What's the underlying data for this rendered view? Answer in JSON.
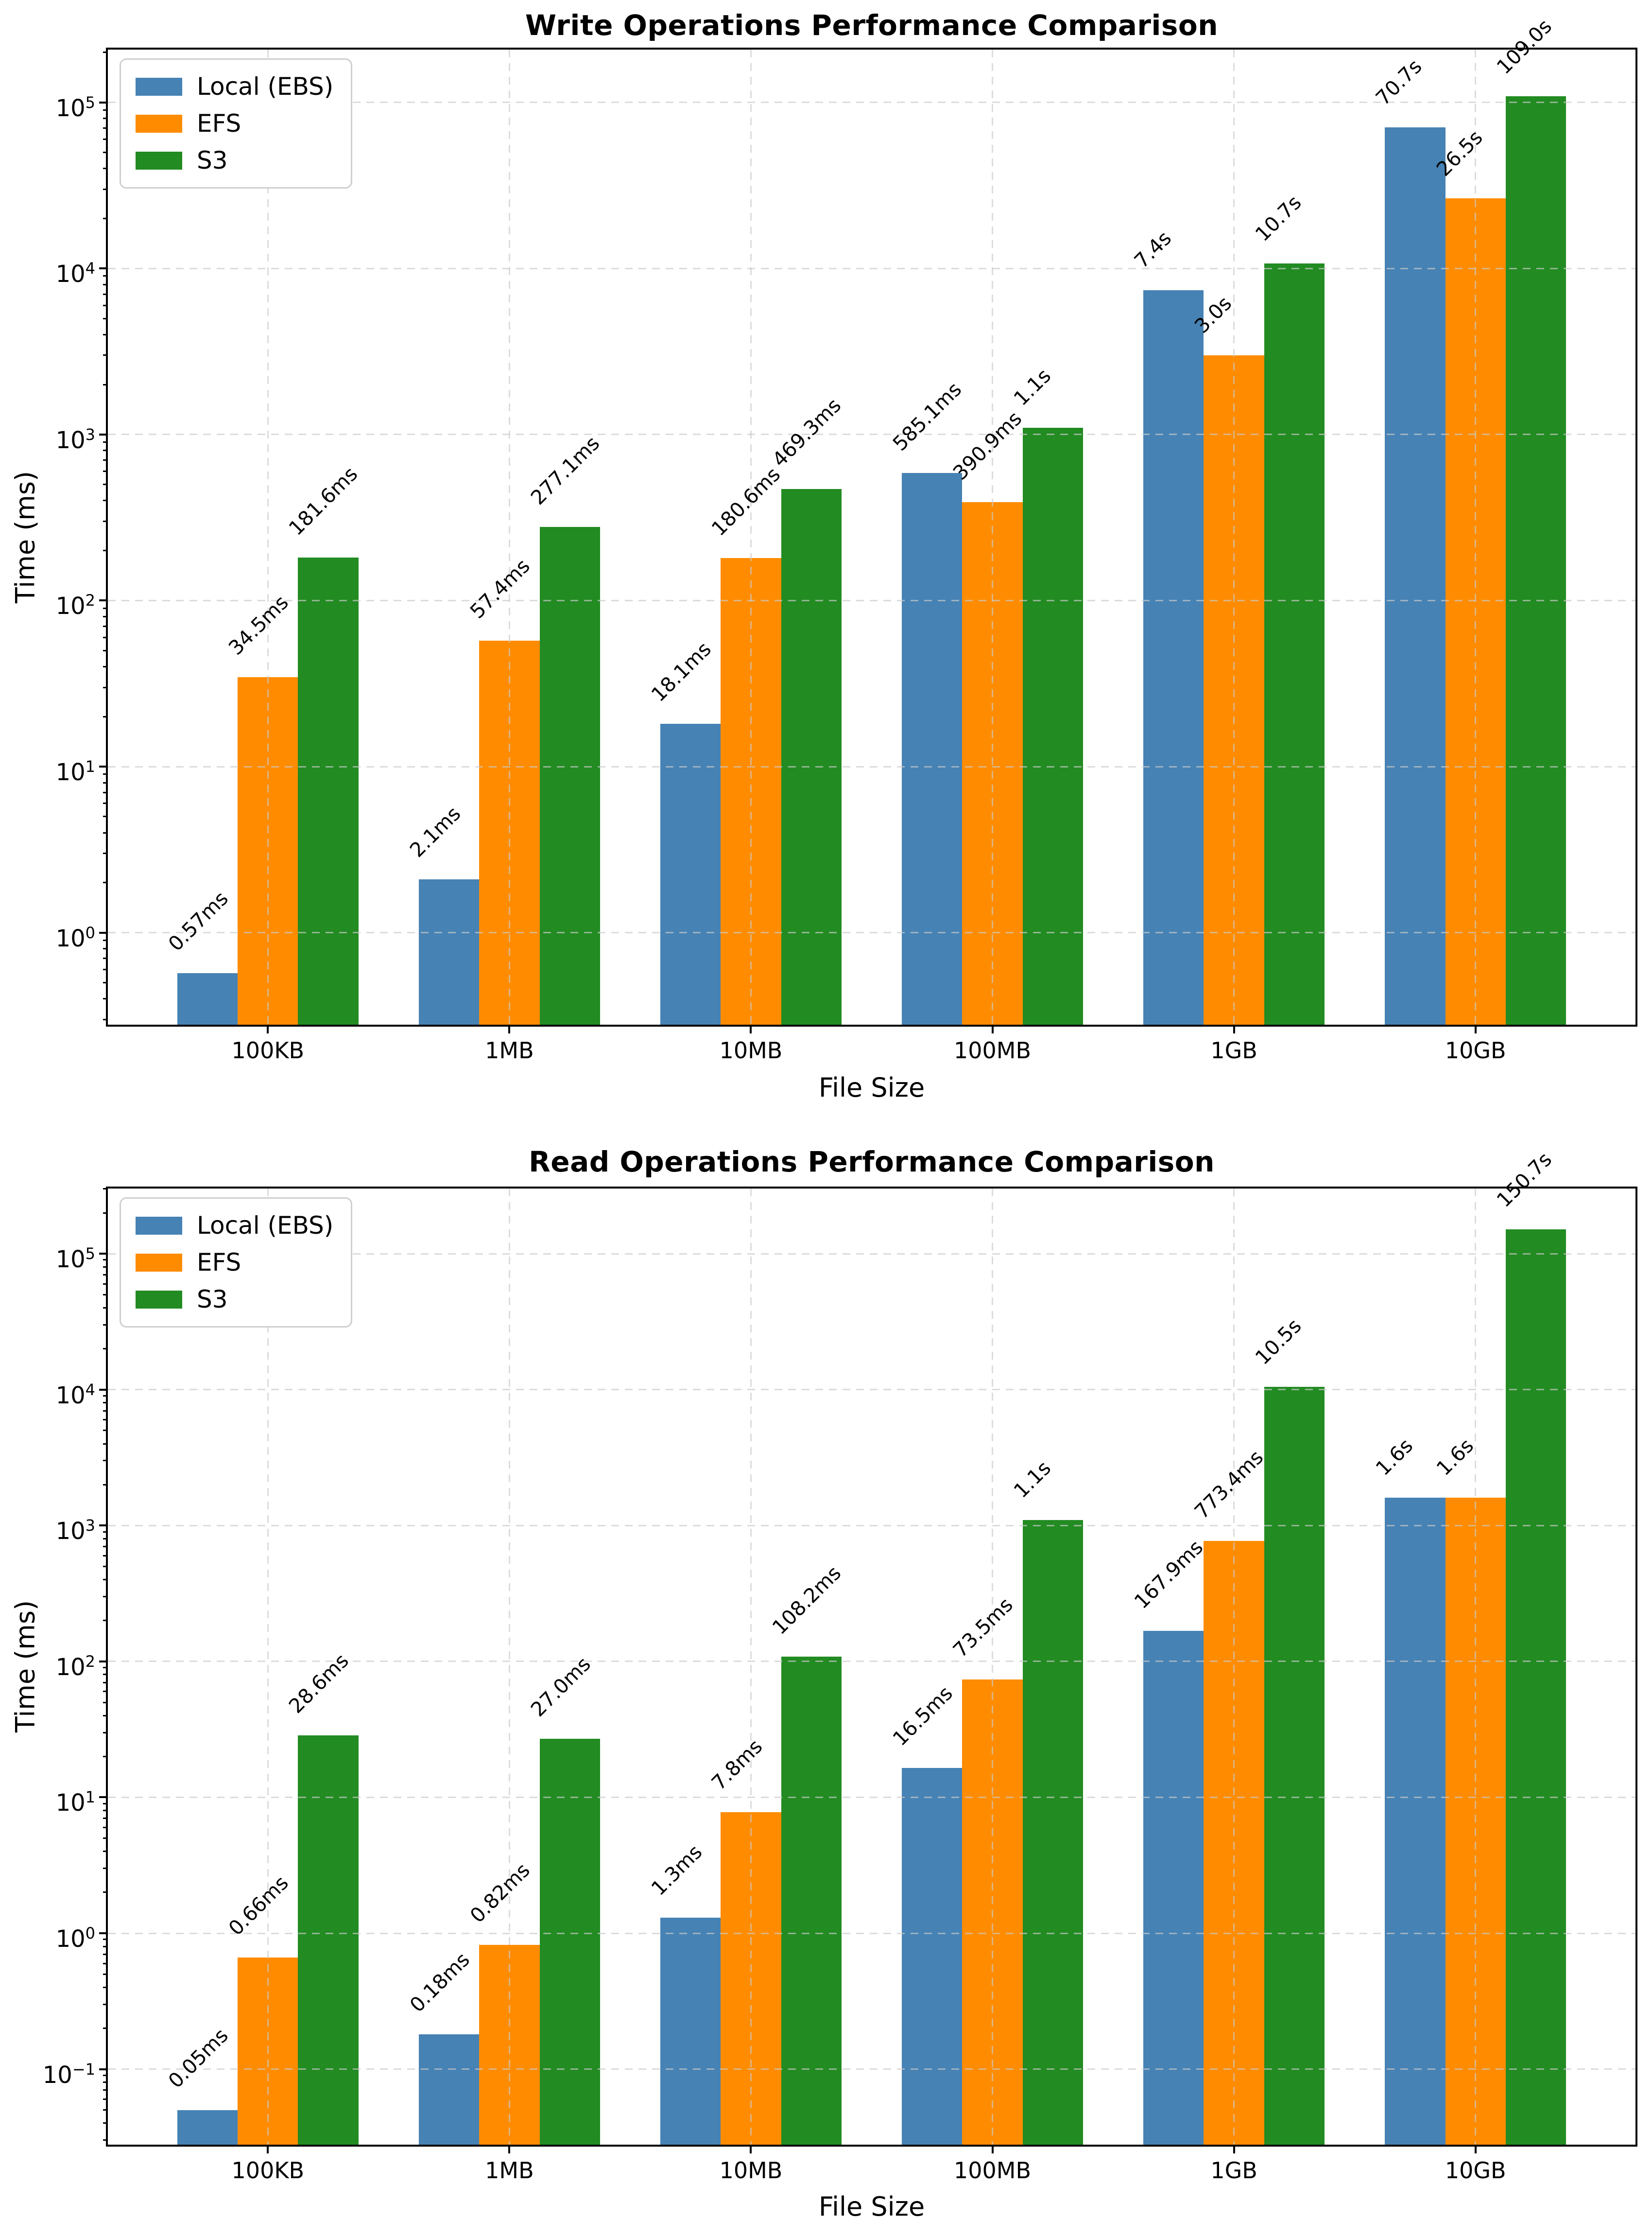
{
  "page": {
    "background": "#ffffff",
    "text_color": "#000000",
    "grid_color": "#cacaca"
  },
  "chart_data": [
    {
      "type": "bar",
      "title": "Write Operations Performance Comparison",
      "xlabel": "File Size",
      "ylabel": "Time (ms)",
      "yscale": "log",
      "grid": true,
      "legend_position": "upper left",
      "categories": [
        "100KB",
        "1MB",
        "10MB",
        "100MB",
        "1GB",
        "10GB"
      ],
      "series": [
        {
          "name": "Local (EBS)",
          "color": "#4682B4",
          "values_ms": [
            0.57,
            2.1,
            18.1,
            585.1,
            7400,
            70700
          ],
          "labels": [
            "0.57ms",
            "2.1ms",
            "18.1ms",
            "585.1ms",
            "7.4s",
            "70.7s"
          ]
        },
        {
          "name": "EFS",
          "color": "#FF8C00",
          "values_ms": [
            34.5,
            57.4,
            180.6,
            390.9,
            3000,
            26500
          ],
          "labels": [
            "34.5ms",
            "57.4ms",
            "180.6ms",
            "390.9ms",
            "3.0s",
            "26.5s"
          ]
        },
        {
          "name": "S3",
          "color": "#228B22",
          "values_ms": [
            181.6,
            277.1,
            469.3,
            1100,
            10700,
            109000
          ],
          "labels": [
            "181.6ms",
            "277.1ms",
            "469.3ms",
            "1.1s",
            "10.7s",
            "109.0s"
          ]
        }
      ],
      "ytick_exponents": [
        5,
        4,
        3,
        2,
        1,
        0
      ],
      "ylim_log": [
        -0.554,
        5.318
      ],
      "xlim": [
        -0.6625,
        5.6625
      ],
      "bar_width_units": 0.25
    },
    {
      "type": "bar",
      "title": "Read Operations Performance Comparison",
      "xlabel": "File Size",
      "ylabel": "Time (ms)",
      "yscale": "log",
      "grid": true,
      "legend_position": "upper left",
      "categories": [
        "100KB",
        "1MB",
        "10MB",
        "100MB",
        "1GB",
        "10GB"
      ],
      "series": [
        {
          "name": "Local (EBS)",
          "color": "#4682B4",
          "values_ms": [
            0.05,
            0.18,
            1.3,
            16.5,
            167.9,
            1600
          ],
          "labels": [
            "0.05ms",
            "0.18ms",
            "1.3ms",
            "16.5ms",
            "167.9ms",
            "1.6s"
          ]
        },
        {
          "name": "EFS",
          "color": "#FF8C00",
          "values_ms": [
            0.66,
            0.82,
            7.8,
            73.5,
            773.4,
            1600
          ],
          "labels": [
            "0.66ms",
            "0.82ms",
            "7.8ms",
            "73.5ms",
            "773.4ms",
            "1.6s"
          ]
        },
        {
          "name": "S3",
          "color": "#228B22",
          "values_ms": [
            28.6,
            27.0,
            108.2,
            1100,
            10500,
            150700
          ],
          "labels": [
            "28.6ms",
            "27.0ms",
            "108.2ms",
            "1.1s",
            "10.5s",
            "150.7s"
          ]
        }
      ],
      "ytick_exponents": [
        5,
        4,
        3,
        2,
        1,
        0,
        -1
      ],
      "ylim_log": [
        -1.556,
        5.48
      ],
      "xlim": [
        -0.6625,
        5.6625
      ],
      "bar_width_units": 0.25
    }
  ]
}
